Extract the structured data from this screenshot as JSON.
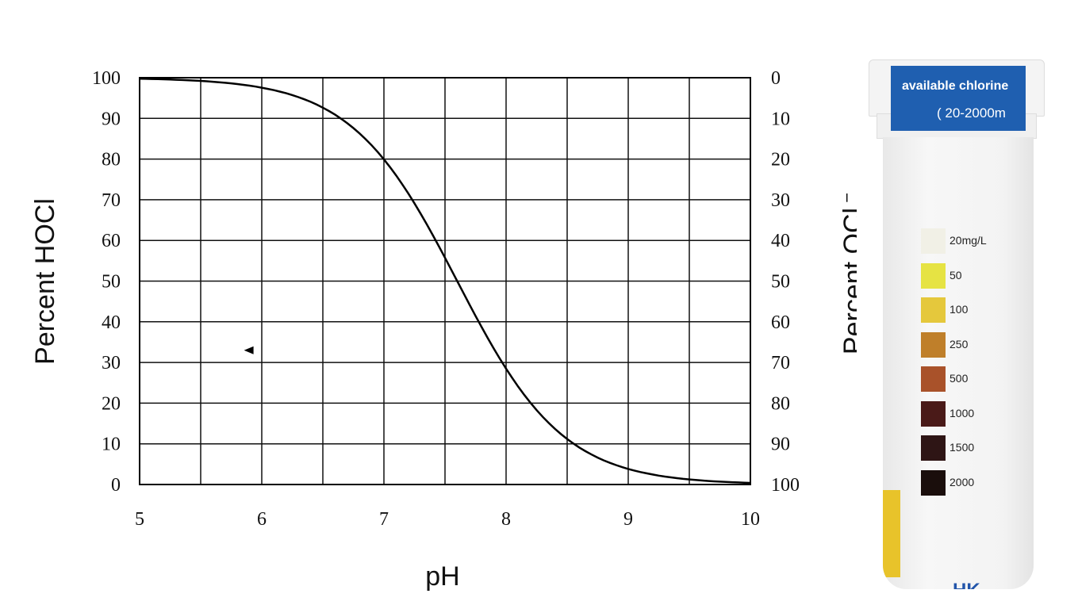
{
  "chart_data": {
    "type": "line",
    "xlabel": "pH",
    "ylabel": "Percent HOCl",
    "ylabel_right": "Percent OCl",
    "ylabel_right_superscript": "−",
    "xlim": [
      5,
      10
    ],
    "ylim": [
      0,
      100
    ],
    "x_ticks": [
      "5",
      "6",
      "7",
      "8",
      "9",
      "10"
    ],
    "y_ticks": [
      "0",
      "10",
      "20",
      "30",
      "40",
      "50",
      "60",
      "70",
      "80",
      "90",
      "100"
    ],
    "y_ticks_right": [
      "100",
      "90",
      "80",
      "70",
      "60",
      "50",
      "40",
      "30",
      "20",
      "10",
      "0"
    ],
    "grid": true,
    "series": [
      {
        "name": "HOCl",
        "x": [
          5,
          5.5,
          6,
          6.5,
          7,
          7.25,
          7.5,
          7.75,
          8,
          8.25,
          8.5,
          9,
          9.5,
          10
        ],
        "y": [
          99.7,
          99.2,
          97.5,
          92.6,
          79.9,
          69.1,
          55.7,
          41.5,
          28.5,
          18.3,
          11.2,
          3.8,
          1.2,
          0.4
        ]
      }
    ],
    "marker": {
      "x": 5.9,
      "y": 33
    }
  },
  "product": {
    "title": "available chlorine",
    "range": "( 20-2000m",
    "scale": [
      {
        "label": "20mg/L",
        "color": "#f1f0e6"
      },
      {
        "label": "50",
        "color": "#e6e343"
      },
      {
        "label": "100",
        "color": "#e5c83c"
      },
      {
        "label": "250",
        "color": "#bf7f2a"
      },
      {
        "label": "500",
        "color": "#a9522a"
      },
      {
        "label": "1000",
        "color": "#4a1a18"
      },
      {
        "label": "1500",
        "color": "#2e1515"
      },
      {
        "label": "2000",
        "color": "#1a0e0c"
      }
    ],
    "logo": "HK"
  }
}
